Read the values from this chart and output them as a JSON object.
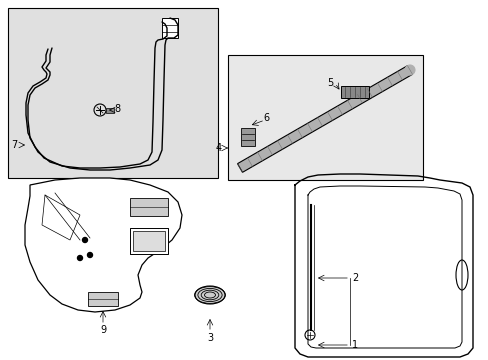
{
  "bg_color": "#ffffff",
  "line_color": "#000000",
  "gray_bg": "#e8e8e8",
  "figsize": [
    4.89,
    3.6
  ],
  "dpi": 100
}
